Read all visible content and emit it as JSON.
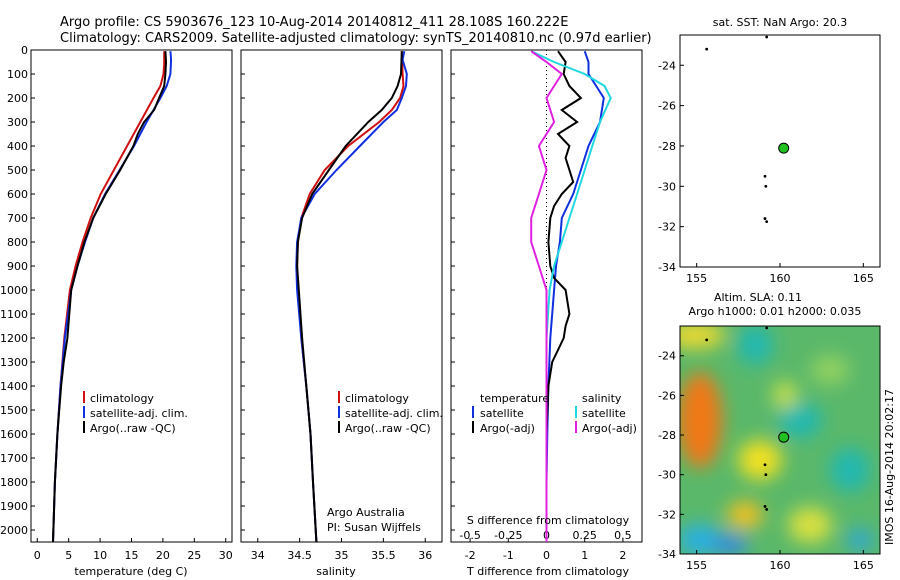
{
  "figure": {
    "title_line1": "Argo profile: CS 5903676_123 10-Aug-2014 20140812_411 28.108S 160.222E",
    "title_line2": "Climatology: CARS2009. Satellite-adjusted climatology: synTS_20140810.nc (0.97d earlier)",
    "credit_line1": "Argo Australia",
    "credit_line2": "PI: Susan Wijffels",
    "watermark": "IMOS 16-Aug-2014 20:02:17"
  },
  "colors": {
    "climatology": "#d01010",
    "satellite": "#1030e0",
    "argo": "#000000",
    "sal_sat": "#20d8e0",
    "sal_argo": "#e020e0",
    "marker": "#20c020"
  },
  "chart_data": [
    {
      "id": "temperature",
      "type": "line",
      "xlabel": "temperature (deg C)",
      "ylabel": "",
      "xlim": [
        -1,
        31
      ],
      "ylim": [
        2050,
        0
      ],
      "xticks": [
        0,
        5,
        10,
        15,
        20,
        25,
        30
      ],
      "yticks": [
        0,
        100,
        200,
        300,
        400,
        500,
        600,
        700,
        800,
        900,
        1000,
        1100,
        1200,
        1300,
        1400,
        1500,
        1600,
        1700,
        1800,
        1900,
        2000
      ],
      "legend": [
        "climatology",
        "satellite-adj. clim.",
        "Argo(..raw -QC)"
      ],
      "series": [
        {
          "name": "climatology",
          "color": "#d01010",
          "y": [
            5,
            60,
            100,
            150,
            200,
            300,
            400,
            500,
            600,
            700,
            800,
            900,
            1000,
            1200,
            1400,
            1600,
            1800,
            2050
          ],
          "x": [
            20.2,
            20.2,
            20.1,
            19.6,
            18.5,
            16.4,
            14.3,
            12.2,
            10.1,
            8.5,
            7.2,
            6.1,
            5.2,
            4.3,
            3.7,
            3.2,
            2.8,
            2.5
          ]
        },
        {
          "name": "satellite-adj. clim.",
          "color": "#1030e0",
          "y": [
            5,
            40,
            100,
            150,
            200,
            300,
            400,
            500,
            600,
            700,
            800,
            900,
            1000,
            1200,
            1400,
            1600,
            1800,
            2050
          ],
          "x": [
            21.2,
            21.3,
            21.2,
            20.6,
            19.6,
            17.4,
            15.4,
            13.1,
            10.8,
            8.9,
            7.6,
            6.4,
            5.4,
            4.4,
            3.7,
            3.2,
            2.8,
            2.5
          ]
        },
        {
          "name": "Argo(..raw -QC)",
          "color": "#000000",
          "y": [
            5,
            50,
            100,
            150,
            200,
            250,
            300,
            350,
            400,
            500,
            600,
            700,
            800,
            900,
            1000,
            1100,
            1200,
            1300,
            1400,
            1600,
            1800,
            2050
          ],
          "x": [
            20.4,
            20.5,
            20.4,
            20.2,
            19.4,
            18.6,
            17.0,
            16.0,
            15.3,
            13.2,
            10.9,
            8.9,
            7.5,
            6.4,
            5.4,
            5.1,
            4.8,
            4.2,
            3.8,
            3.2,
            2.8,
            2.5
          ]
        }
      ]
    },
    {
      "id": "salinity",
      "type": "line",
      "xlabel": "salinity",
      "ylabel": "",
      "xlim": [
        33.8,
        36.2
      ],
      "ylim": [
        2050,
        0
      ],
      "xticks": [
        34,
        34.5,
        35,
        35.5,
        36
      ],
      "legend": [
        "climatology",
        "satellite-adj. clim.",
        "Argo(..raw -QC)"
      ],
      "series": [
        {
          "name": "climatology",
          "color": "#d01010",
          "y": [
            5,
            100,
            150,
            200,
            250,
            300,
            400,
            500,
            600,
            700,
            800,
            900,
            1000,
            1200,
            1400,
            1600,
            1800,
            2050
          ],
          "x": [
            35.72,
            35.73,
            35.74,
            35.7,
            35.6,
            35.45,
            35.08,
            34.8,
            34.62,
            34.52,
            34.48,
            34.47,
            34.48,
            34.52,
            34.58,
            34.63,
            34.66,
            34.7
          ]
        },
        {
          "name": "satellite-adj. clim.",
          "color": "#1030e0",
          "y": [
            5,
            40,
            100,
            150,
            200,
            250,
            300,
            400,
            500,
            600,
            700,
            800,
            900,
            1000,
            1200,
            1400,
            1600,
            1800,
            2050
          ],
          "x": [
            35.75,
            35.73,
            35.78,
            35.77,
            35.72,
            35.66,
            35.5,
            35.22,
            34.94,
            34.68,
            34.52,
            34.47,
            34.46,
            34.47,
            34.52,
            34.58,
            34.63,
            34.66,
            34.7
          ]
        },
        {
          "name": "Argo(..raw -QC)",
          "color": "#000000",
          "y": [
            5,
            100,
            150,
            200,
            250,
            300,
            400,
            450,
            500,
            600,
            700,
            800,
            900,
            1000,
            1200,
            1400,
            1600,
            1800,
            2050
          ],
          "x": [
            35.72,
            35.71,
            35.67,
            35.6,
            35.48,
            35.32,
            35.05,
            34.95,
            34.85,
            34.65,
            34.53,
            34.48,
            34.47,
            34.49,
            34.53,
            34.58,
            34.63,
            34.66,
            34.7
          ]
        }
      ]
    },
    {
      "id": "differences",
      "type": "line",
      "xlabel_top": "S difference from climatology",
      "xlabel": "T difference from climatology",
      "xlim": [
        -2.5,
        2.5
      ],
      "ylim": [
        2050,
        0
      ],
      "xticks_t": [
        -2,
        -1,
        0,
        1,
        2
      ],
      "xticks_s": [
        "-0.5",
        "-0.25",
        "0",
        "0.25",
        "0.5"
      ],
      "legend_t_title": "temperature",
      "legend_s_title": "salinity",
      "legend": [
        "satellite",
        "Argo(-adj)",
        "satellite",
        "Argo(-adj)"
      ],
      "series": [
        {
          "name": "satellite",
          "group": "temperature",
          "color": "#1030e0",
          "y": [
            5,
            50,
            100,
            150,
            200,
            300,
            400,
            500,
            600,
            700,
            800,
            900,
            1000,
            1200,
            1400,
            1600,
            1800,
            2050
          ],
          "x": [
            1.0,
            1.1,
            1.1,
            1.3,
            1.5,
            1.4,
            1.1,
            0.9,
            0.7,
            0.4,
            0.35,
            0.25,
            0.2,
            0.1,
            0.05,
            0.02,
            0.0,
            0.0
          ]
        },
        {
          "name": "Argo(-adj)",
          "group": "temperature",
          "color": "#000000",
          "y": [
            5,
            50,
            100,
            150,
            200,
            250,
            300,
            350,
            400,
            450,
            500,
            550,
            600,
            650,
            700,
            800,
            900,
            950,
            1000,
            1050,
            1100,
            1150,
            1200,
            1250,
            1300,
            1400,
            1600,
            1800,
            2050
          ],
          "x": [
            0.3,
            0.5,
            0.45,
            0.6,
            0.9,
            0.4,
            0.8,
            0.3,
            0.6,
            0.5,
            0.6,
            0.7,
            0.4,
            0.2,
            0.1,
            0.05,
            0.1,
            0.2,
            0.5,
            0.55,
            0.6,
            0.5,
            0.45,
            0.3,
            0.15,
            0.05,
            0.0,
            0.0,
            0.0
          ]
        },
        {
          "name": "satellite",
          "group": "salinity",
          "color": "#20d8e0",
          "y": [
            5,
            50,
            100,
            150,
            200,
            300,
            400,
            500,
            600,
            700,
            800,
            900,
            1000,
            1200,
            1400,
            1600,
            1800,
            2050
          ],
          "x": [
            -0.1,
            0.05,
            0.25,
            0.38,
            0.42,
            0.35,
            0.3,
            0.25,
            0.2,
            0.15,
            0.1,
            0.05,
            0.02,
            0.0,
            0.0,
            0.0,
            0.0,
            0.0
          ]
        },
        {
          "name": "Argo(-adj)",
          "group": "salinity",
          "color": "#e020e0",
          "y": [
            5,
            50,
            100,
            150,
            200,
            300,
            400,
            500,
            600,
            700,
            800,
            900,
            1000,
            1200,
            1400,
            1600,
            1800,
            2050
          ],
          "x": [
            -0.1,
            0.0,
            0.1,
            0.05,
            0.0,
            0.05,
            -0.05,
            0.0,
            -0.05,
            -0.1,
            -0.1,
            -0.05,
            0.0,
            0.0,
            0.0,
            0.0,
            0.0,
            0.0
          ]
        }
      ]
    },
    {
      "id": "sst-map",
      "type": "scatter",
      "title": "sat. SST: NaN Argo: 20.3",
      "xlim": [
        154,
        166
      ],
      "ylim": [
        -34,
        -22.5
      ],
      "xticks": [
        155,
        160,
        165
      ],
      "yticks": [
        -24,
        -26,
        -28,
        -30,
        -32,
        -34
      ],
      "marker": {
        "x": 160.222,
        "y": -28.108
      },
      "points": [
        {
          "x": 155.6,
          "y": -23.2
        },
        {
          "x": 159.2,
          "y": -22.6
        },
        {
          "x": 159.1,
          "y": -29.5
        },
        {
          "x": 159.15,
          "y": -30.0
        },
        {
          "x": 159.1,
          "y": -31.6
        },
        {
          "x": 159.2,
          "y": -31.75
        }
      ]
    },
    {
      "id": "sla-map",
      "type": "heatmap",
      "title_line1": "Altim. SLA: 0.11",
      "title_line2": "Argo h1000: 0.01 h2000: 0.035",
      "xlim": [
        154,
        166
      ],
      "ylim": [
        -34,
        -22.5
      ],
      "xticks": [
        155,
        160,
        165
      ],
      "yticks": [
        -24,
        -26,
        -28,
        -30,
        -32,
        -34
      ],
      "marker": {
        "x": 160.222,
        "y": -28.108
      },
      "points": [
        {
          "x": 155.6,
          "y": -23.2
        },
        {
          "x": 159.2,
          "y": -22.6
        },
        {
          "x": 159.1,
          "y": -29.5
        },
        {
          "x": 159.15,
          "y": -30.0
        },
        {
          "x": 159.1,
          "y": -31.6
        },
        {
          "x": 159.2,
          "y": -31.75
        }
      ]
    }
  ]
}
